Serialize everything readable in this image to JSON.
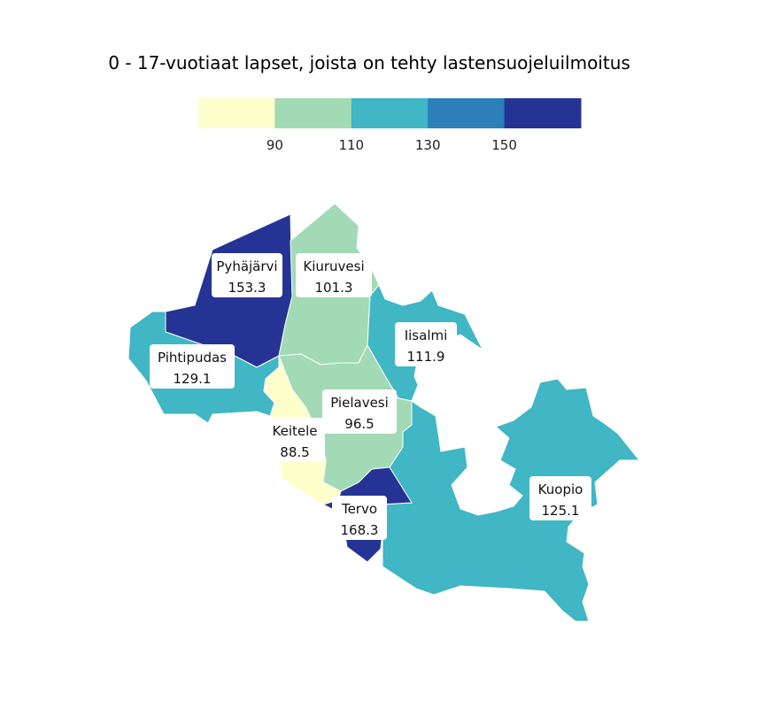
{
  "title": "0 - 17-vuotiaat lapset, joista on tehty lastensuojeluilmoitus",
  "chart_data": {
    "type": "choropleth",
    "legend": {
      "position": "top-center",
      "thresholds": [
        90,
        110,
        130,
        150
      ],
      "tick_labels": [
        "90",
        "110",
        "130",
        "150"
      ],
      "colors": [
        "#ffffcc",
        "#a1dab4",
        "#41b6c4",
        "#2c7fb8",
        "#253494"
      ]
    },
    "regions": [
      {
        "name": "Pyhäjärvi",
        "value": 153.3,
        "value_label": "153.3",
        "color": "#253494"
      },
      {
        "name": "Kiuruvesi",
        "value": 101.3,
        "value_label": "101.3",
        "color": "#a1dab4"
      },
      {
        "name": "Iisalmi",
        "value": 111.9,
        "value_label": "111.9",
        "color": "#41b6c4"
      },
      {
        "name": "Pihtipudas",
        "value": 129.1,
        "value_label": "129.1",
        "color": "#41b6c4"
      },
      {
        "name": "Pielavesi",
        "value": 96.5,
        "value_label": "96.5",
        "color": "#a1dab4"
      },
      {
        "name": "Keitele",
        "value": 88.5,
        "value_label": "88.5",
        "color": "#ffffcc"
      },
      {
        "name": "Kuopio",
        "value": 125.1,
        "value_label": "125.1",
        "color": "#41b6c4"
      },
      {
        "name": "Tervo",
        "value": 168.3,
        "value_label": "168.3",
        "color": "#253494"
      }
    ]
  }
}
